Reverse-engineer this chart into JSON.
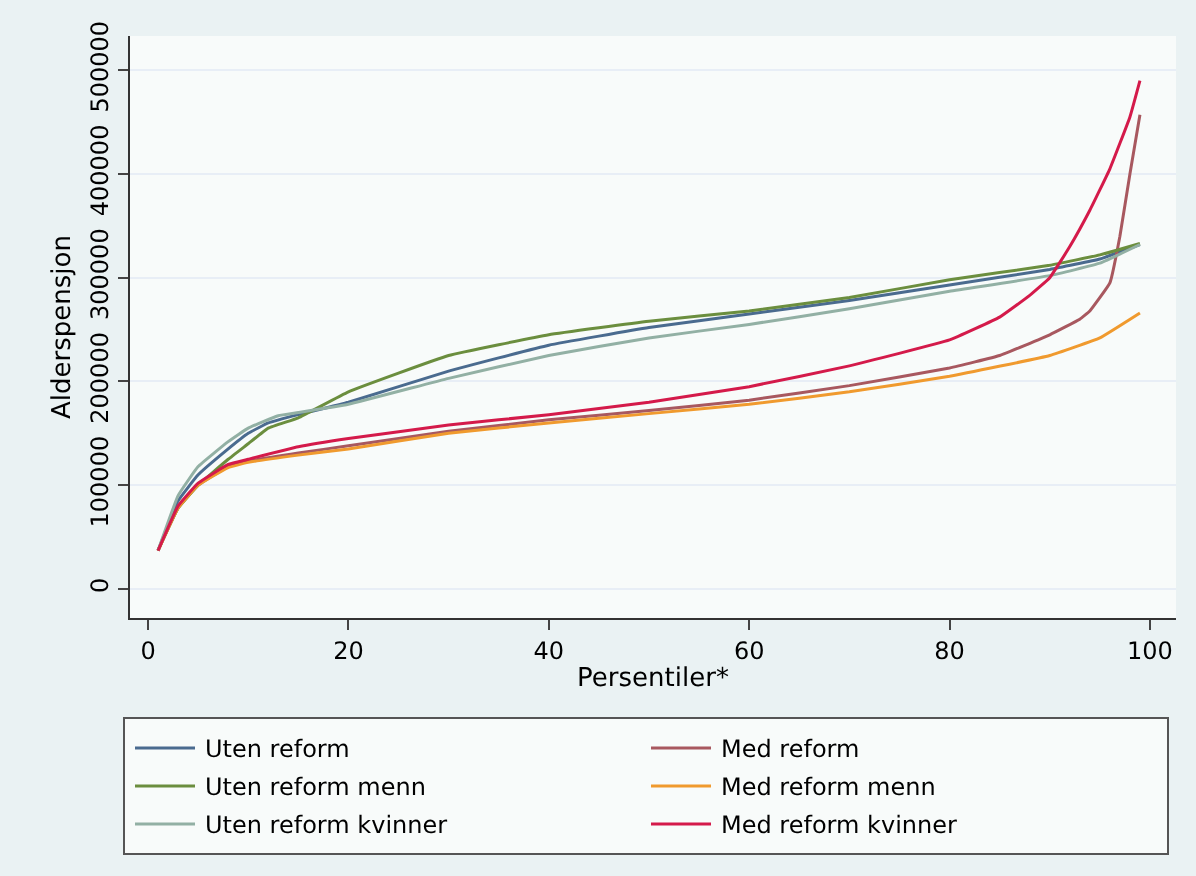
{
  "chart_data": {
    "type": "line",
    "xlabel": "Persentiler*",
    "ylabel": "Alderspensjon",
    "xlim": [
      -1.8,
      102.6
    ],
    "xticks": [
      0,
      20,
      40,
      60,
      80,
      100
    ],
    "ylim": [
      -28000,
      533000
    ],
    "yticks": [
      0,
      100000,
      200000,
      300000,
      400000,
      500000
    ],
    "grid": "y",
    "legend": "bottom",
    "marker": "none",
    "line_style": "solid",
    "series": [
      {
        "name": "Uten reform",
        "color": "#4a6b8f",
        "x": [
          1,
          3,
          5,
          8,
          10,
          12,
          15,
          20,
          30,
          40,
          50,
          60,
          70,
          80,
          90,
          95,
          99
        ],
        "values": [
          37000,
          85000,
          110000,
          135000,
          150000,
          160000,
          168000,
          180000,
          210000,
          235000,
          252000,
          265000,
          278000,
          293000,
          308000,
          318000,
          332000
        ]
      },
      {
        "name": "Med reform",
        "color": "#a8585f",
        "x": [
          1,
          3,
          5,
          8,
          10,
          15,
          20,
          30,
          40,
          50,
          60,
          70,
          80,
          85,
          90,
          93,
          94,
          96,
          97,
          98,
          99
        ],
        "values": [
          37000,
          78000,
          100000,
          118000,
          123000,
          131000,
          138000,
          152000,
          163000,
          172000,
          182000,
          196000,
          213000,
          225000,
          245000,
          260000,
          268000,
          295000,
          340000,
          400000,
          457000
        ]
      },
      {
        "name": "Uten reform menn",
        "color": "#6b8e3e",
        "x": [
          1,
          3,
          5,
          8,
          10,
          12,
          15,
          20,
          30,
          40,
          50,
          60,
          70,
          80,
          90,
          95,
          99
        ],
        "values": [
          37000,
          78000,
          100000,
          125000,
          140000,
          155000,
          165000,
          190000,
          225000,
          245000,
          258000,
          268000,
          281000,
          298000,
          312000,
          322000,
          333000
        ]
      },
      {
        "name": "Med reform menn",
        "color": "#f09a2e",
        "x": [
          1,
          3,
          5,
          8,
          10,
          15,
          20,
          30,
          40,
          50,
          60,
          70,
          80,
          90,
          95,
          99
        ],
        "values": [
          37000,
          78000,
          100000,
          117000,
          122000,
          129000,
          135000,
          150000,
          160000,
          169000,
          178000,
          190000,
          205000,
          225000,
          242000,
          266000
        ]
      },
      {
        "name": "Uten reform kvinner",
        "color": "#92b0a4",
        "x": [
          1,
          3,
          5,
          8,
          10,
          13,
          15,
          20,
          30,
          40,
          50,
          60,
          70,
          80,
          90,
          95,
          99
        ],
        "values": [
          37000,
          90000,
          118000,
          142000,
          155000,
          167000,
          170000,
          178000,
          203000,
          225000,
          242000,
          255000,
          270000,
          287000,
          302000,
          314000,
          332000
        ]
      },
      {
        "name": "Med reform kvinner",
        "color": "#d41a4a",
        "x": [
          1,
          3,
          5,
          8,
          10,
          15,
          20,
          30,
          40,
          50,
          60,
          70,
          80,
          85,
          88,
          90,
          92,
          94,
          96,
          98,
          99
        ],
        "values": [
          37000,
          80000,
          102000,
          120000,
          125000,
          137000,
          145000,
          158000,
          168000,
          180000,
          195000,
          215000,
          240000,
          262000,
          283000,
          300000,
          330000,
          365000,
          405000,
          455000,
          490000
        ]
      }
    ]
  }
}
